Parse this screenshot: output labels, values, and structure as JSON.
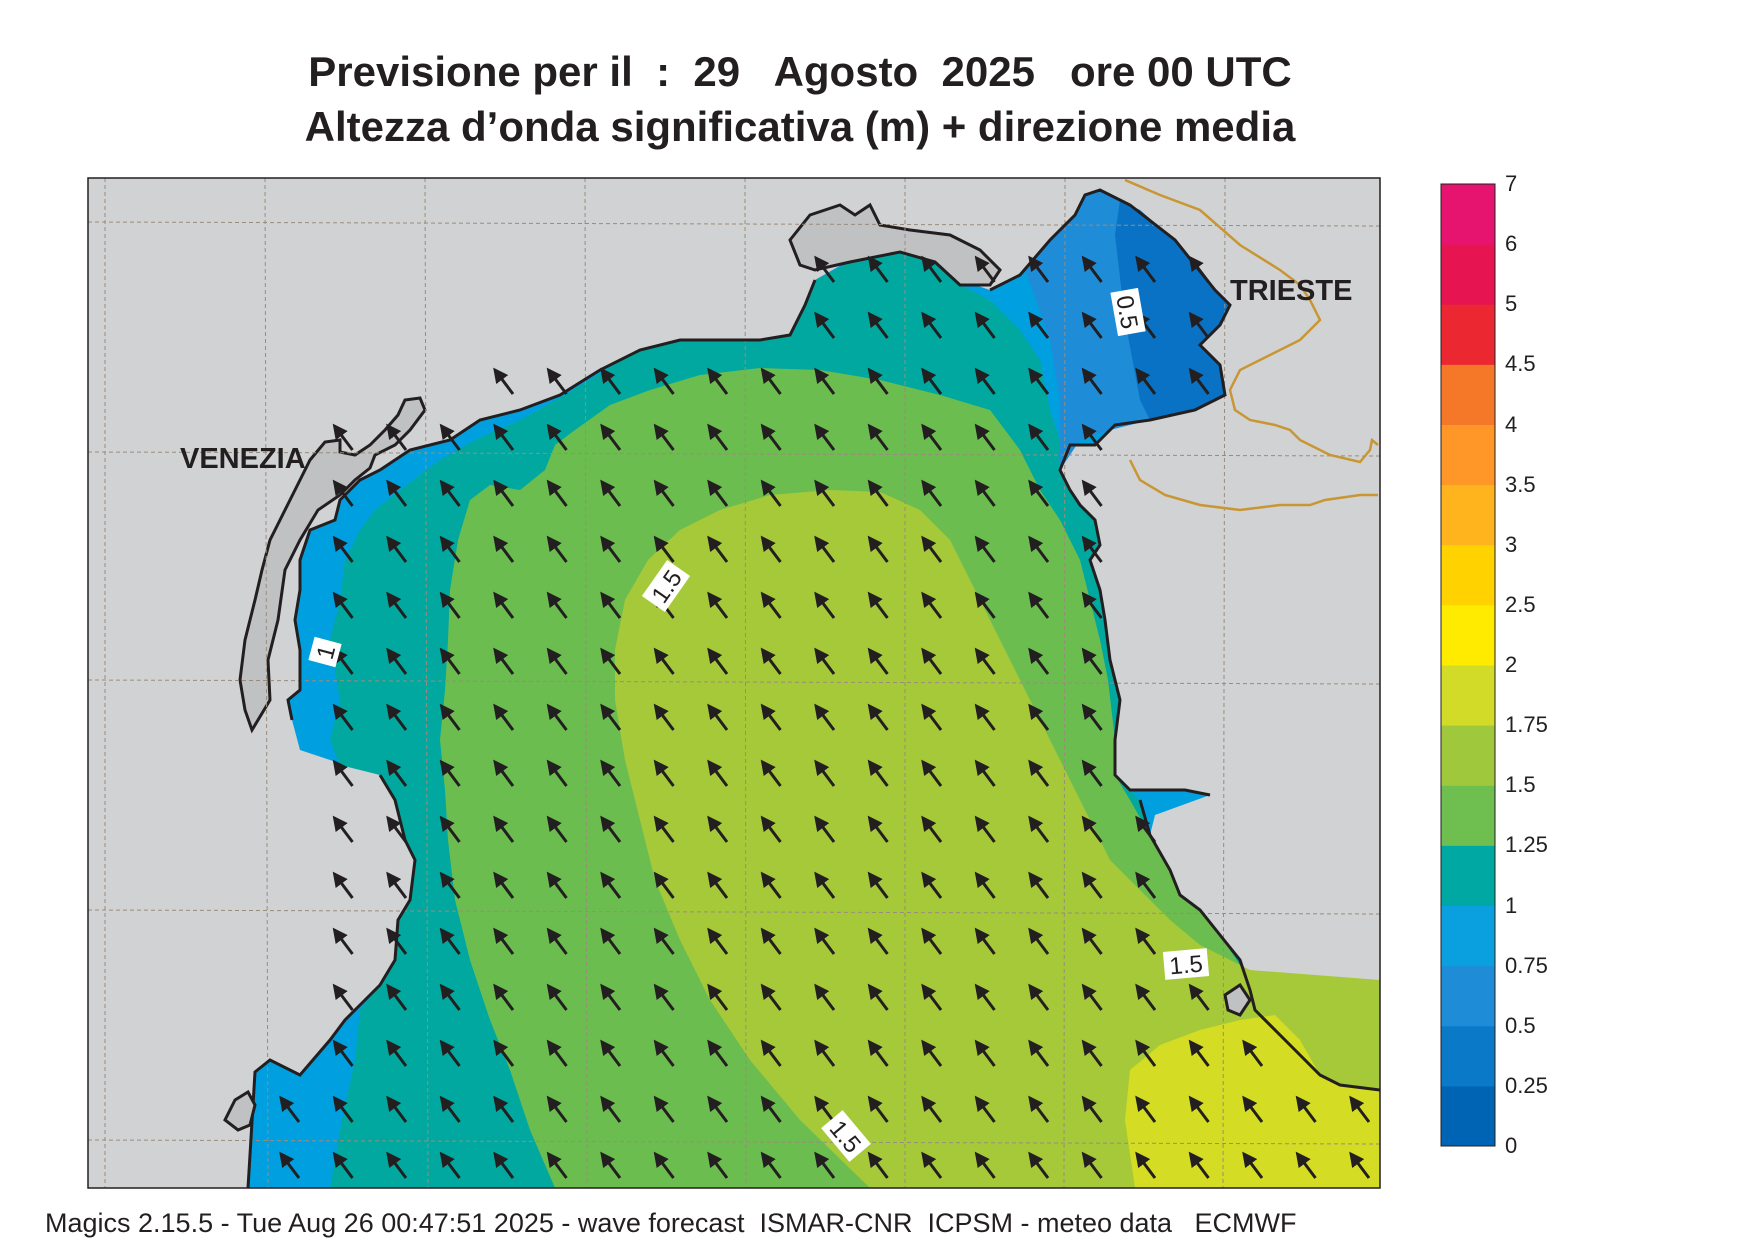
{
  "title": {
    "line1": "Previsione per il  :  29   Agosto  2025   ore 00 UTC",
    "line2": "Altezza d’onda significativa (m) + direzione media"
  },
  "cities": {
    "venezia": "VENEZIA",
    "trieste": "TRIESTE"
  },
  "contour_labels": [
    "0.5",
    "1",
    "1.5",
    "1.5",
    "1.5"
  ],
  "colorbar": {
    "ticks": [
      "0",
      "0.25",
      "0.5",
      "0.75",
      "1",
      "1.25",
      "1.5",
      "1.75",
      "2",
      "2.5",
      "3",
      "3.5",
      "4",
      "4.5",
      "5",
      "6",
      "7"
    ],
    "colors": [
      "#0064b4",
      "#0a7ac8",
      "#1e8cd7",
      "#0aa0e0",
      "#00a8a4",
      "#6ebe50",
      "#a0c83c",
      "#d2dc28",
      "#ffeb00",
      "#ffd200",
      "#ffb41e",
      "#ff9628",
      "#f57828",
      "#eb2832",
      "#e61450",
      "#e6146e"
    ]
  },
  "colors": {
    "land": "#d1d2d4",
    "sea_lightblue": "#00a0e0",
    "sea_blue": "#1e8cd7",
    "sea_darkblue": "#0a72c4",
    "teal": "#00a89f",
    "green": "#6cbd4f",
    "yellowgreen": "#a6c93a",
    "yellow": "#d4dc23",
    "border": "#c89632"
  },
  "footer": "Magics 2.15.5 - Tue Aug 26 00:47:51 2025 - wave forecast  ISMAR-CNR  ICPSM - meteo data   ECMWF"
}
